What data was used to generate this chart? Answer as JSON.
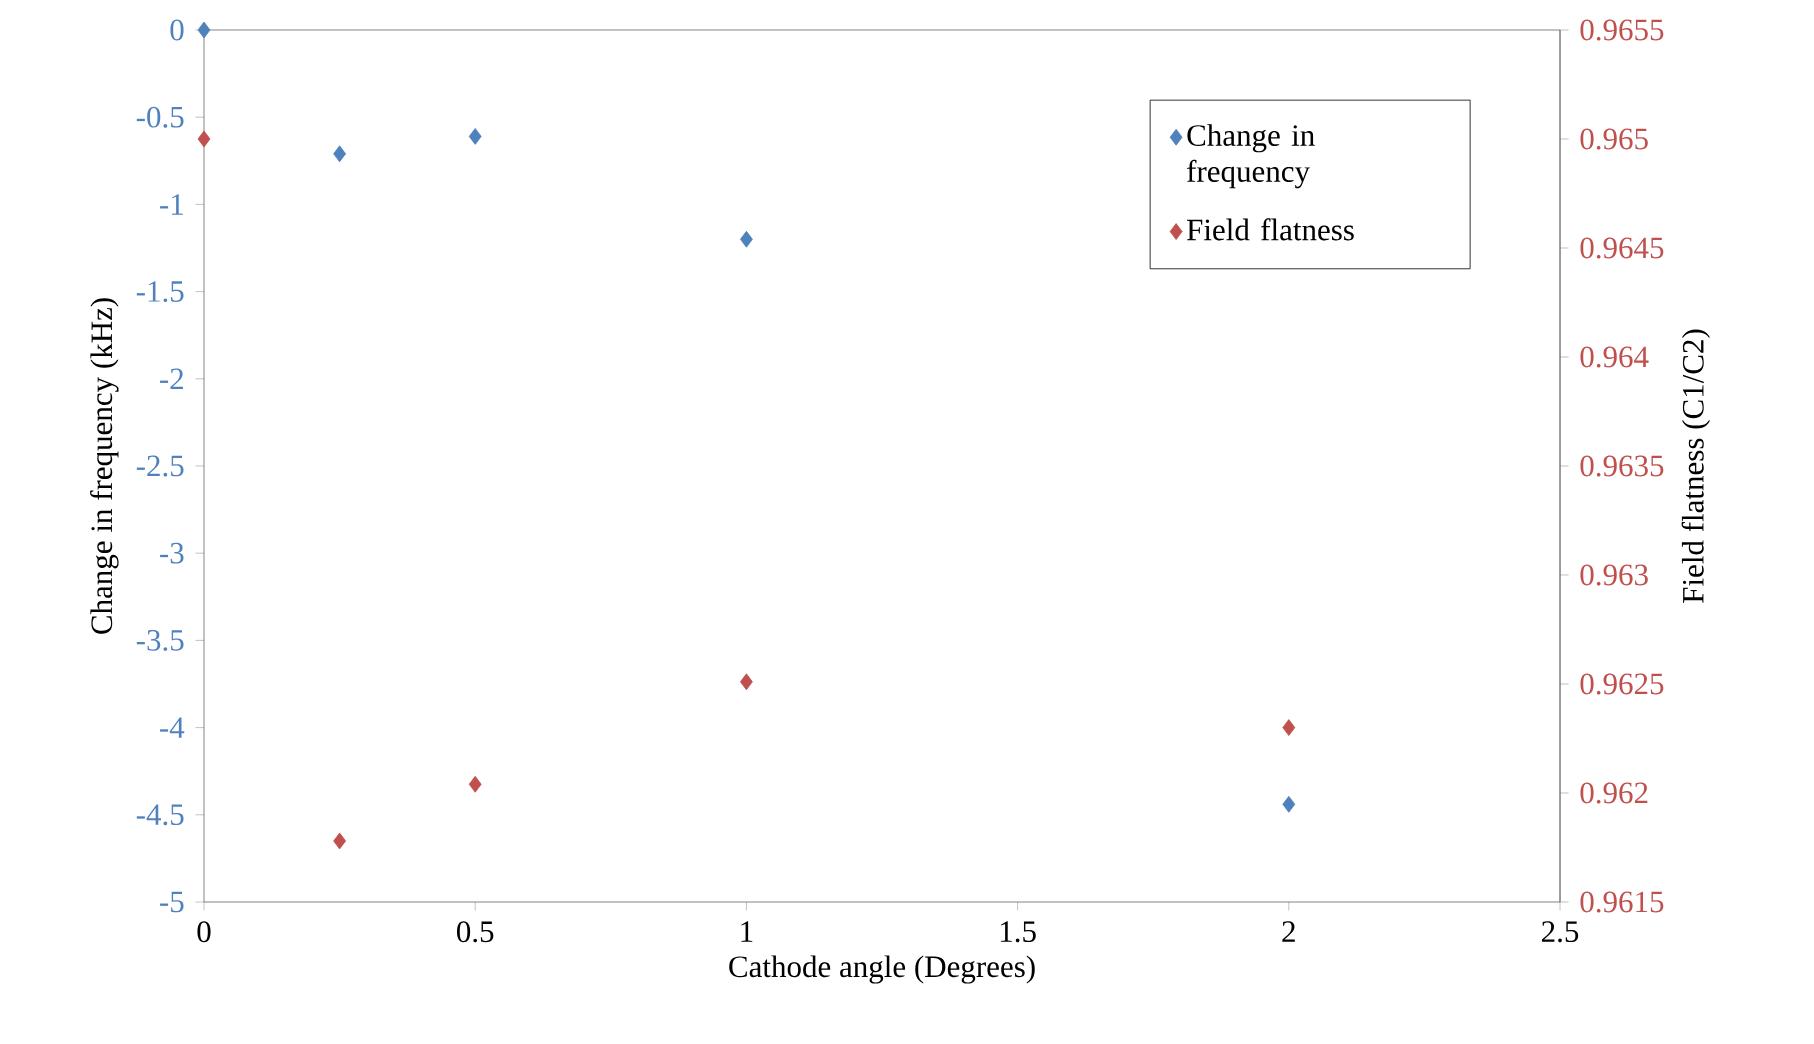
{
  "chart_data": {
    "type": "scatter",
    "xlabel": "Cathode angle (Degrees)",
    "ylabel": "Change in frequency (kHz)",
    "y2label": "Field flatness (C1/C2)",
    "series": [
      {
        "name": "Change in frequency",
        "color": "#4f81bd",
        "axis": "y",
        "x": [
          0,
          0.25,
          0.5,
          1,
          2
        ],
        "values": [
          0,
          -0.71,
          -0.61,
          -1.2,
          -4.44
        ]
      },
      {
        "name": "Field flatness",
        "color": "#c0504d",
        "axis": "y2",
        "x": [
          0,
          0.25,
          0.5,
          1,
          2
        ],
        "values": [
          0.965,
          0.96178,
          0.96204,
          0.96251,
          0.9623
        ]
      }
    ],
    "xlim": [
      0,
      2.5
    ],
    "xticks": [
      0,
      0.5,
      1,
      1.5,
      2,
      2.5
    ],
    "ylim": [
      -5,
      0
    ],
    "yticks": [
      -5,
      -4.5,
      -4,
      -3.5,
      -3,
      -2.5,
      -2,
      -1.5,
      -1,
      -0.5,
      0
    ],
    "y2lim": [
      0.9615,
      0.9655
    ],
    "y2ticks": [
      0.9615,
      0.962,
      0.9625,
      0.963,
      0.9635,
      0.964,
      0.9645,
      0.965,
      0.9655
    ],
    "legend": "top right",
    "marker": "diamond"
  }
}
